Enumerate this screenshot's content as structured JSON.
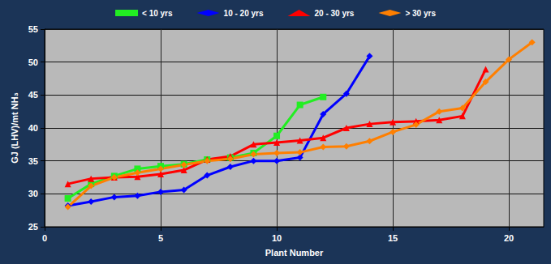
{
  "chart_data": {
    "type": "line",
    "x_label": "Plant Number",
    "y_label": "GJ (LHV)/mt NH₃",
    "xlim": [
      0,
      21.5
    ],
    "xticks": [
      0,
      5,
      10,
      15,
      20
    ],
    "ylim": [
      25,
      55
    ],
    "yticks": [
      25,
      30,
      35,
      40,
      45,
      50,
      55
    ],
    "grid": true,
    "legend": "top",
    "series": [
      {
        "name": "< 10 yrs",
        "color": "#22ee22",
        "marker": "square",
        "x": [
          1,
          2,
          3,
          4,
          5,
          6,
          7,
          8,
          9,
          10,
          11,
          12
        ],
        "values": [
          29.3,
          31.5,
          32.7,
          33.8,
          34.2,
          34.5,
          35.2,
          35.5,
          36.2,
          38.8,
          43.5,
          44.7
        ]
      },
      {
        "name": "10 - 20 yrs",
        "color": "#0000ff",
        "marker": "diamond",
        "x": [
          1,
          2,
          3,
          4,
          5,
          6,
          7,
          8,
          9,
          10,
          11,
          12,
          13,
          14
        ],
        "values": [
          28.2,
          28.8,
          29.5,
          29.7,
          30.3,
          30.6,
          32.8,
          34.1,
          35.0,
          35.0,
          35.5,
          42.1,
          45.2,
          50.9
        ]
      },
      {
        "name": "20 - 30 yrs",
        "color": "#ff0000",
        "marker": "triangle",
        "x": [
          1,
          2,
          3,
          4,
          5,
          6,
          7,
          8,
          9,
          10,
          11,
          12,
          13,
          14,
          15,
          16,
          17,
          18,
          19
        ],
        "values": [
          31.5,
          32.3,
          32.5,
          32.6,
          33.0,
          33.6,
          35.2,
          35.7,
          37.5,
          37.8,
          38.1,
          38.5,
          40.0,
          40.6,
          40.9,
          41.0,
          41.2,
          41.8,
          48.9
        ]
      },
      {
        "name": "> 30 yrs",
        "color": "#ff7f00",
        "marker": "diamond",
        "x": [
          1,
          2,
          3,
          4,
          5,
          6,
          7,
          8,
          9,
          10,
          11,
          12,
          13,
          14,
          15,
          16,
          17,
          18,
          19,
          20,
          21
        ],
        "values": [
          28.0,
          31.2,
          32.5,
          33.2,
          33.8,
          34.4,
          35.0,
          35.3,
          36.0,
          36.2,
          36.3,
          37.1,
          37.2,
          38.0,
          39.4,
          40.5,
          42.5,
          43.0,
          47.0,
          50.4,
          53.0
        ]
      }
    ]
  }
}
